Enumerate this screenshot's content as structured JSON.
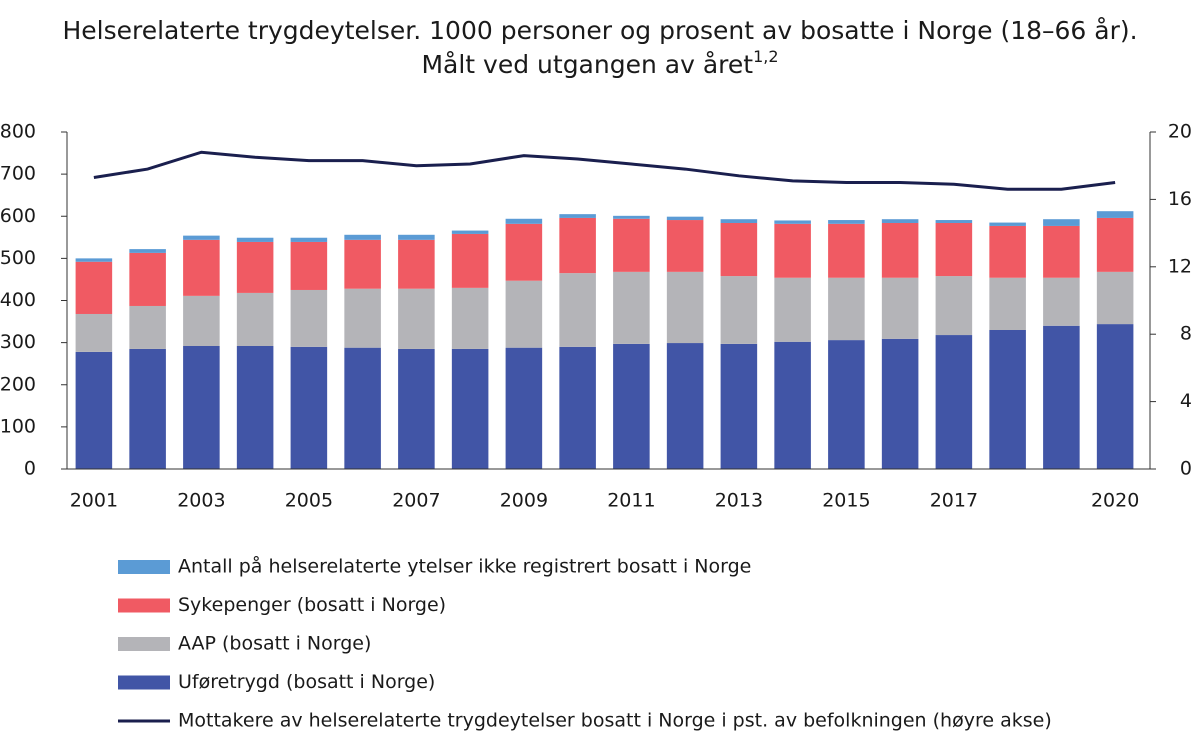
{
  "chart_data": {
    "type": "bar",
    "title": [
      "Helserelaterte trygdeytelser. 1000 personer og prosent av bosatte i Norge (18–66 år).",
      "Målt ved utgangen av året"
    ],
    "title_note": "1,2",
    "stacked": true,
    "categories": [
      "2001",
      null,
      "2003",
      null,
      "2005",
      null,
      "2007",
      null,
      "2009",
      null,
      "2011",
      null,
      "2013",
      null,
      "2015",
      null,
      "2017",
      null,
      null,
      "2020"
    ],
    "series": [
      {
        "name": "Antall på helserelaterte ytelser ikke registrert bosatt i Norge",
        "color": "#5b9bd5",
        "values": [
          8,
          9,
          10,
          10,
          10,
          12,
          12,
          8,
          12,
          9,
          7,
          8,
          9,
          8,
          9,
          9,
          7,
          8,
          16,
          16
        ]
      },
      {
        "name": "Sykepenger (bosatt i Norge)",
        "color": "#f05a63",
        "values": [
          124,
          126,
          133,
          121,
          114,
          116,
          116,
          128,
          135,
          131,
          126,
          123,
          126,
          128,
          128,
          130,
          126,
          123,
          123,
          128
        ]
      },
      {
        "name": "AAP (bosatt i Norge)",
        "color": "#b4b4b8",
        "values": [
          90,
          102,
          119,
          126,
          135,
          140,
          143,
          145,
          159,
          175,
          171,
          169,
          161,
          152,
          148,
          145,
          140,
          124,
          114,
          124
        ]
      },
      {
        "name": "Uføretrygd (bosatt i Norge)",
        "color": "#4155a6",
        "values": [
          278,
          285,
          292,
          292,
          290,
          288,
          285,
          285,
          288,
          290,
          297,
          299,
          297,
          302,
          306,
          309,
          318,
          330,
          340,
          344
        ]
      },
      {
        "name": "Mottakere av helserelaterte trygdeytelser bosatt i Norge i pst. av befolkningen (høyre akse)",
        "color": "#1a1f4e",
        "type": "line",
        "axis": "y2",
        "values": [
          17.3,
          17.8,
          18.8,
          18.5,
          18.3,
          18.3,
          18.0,
          18.1,
          18.6,
          18.4,
          18.1,
          17.8,
          17.4,
          17.1,
          17.0,
          17.0,
          16.9,
          16.6,
          16.6,
          17.0
        ]
      }
    ],
    "ylim": [
      0,
      800
    ],
    "yticks": [
      0,
      100,
      200,
      300,
      400,
      500,
      600,
      700,
      800
    ],
    "y2lim": [
      0,
      20
    ],
    "y2ticks": [
      0,
      4,
      8,
      12,
      16,
      20
    ]
  }
}
